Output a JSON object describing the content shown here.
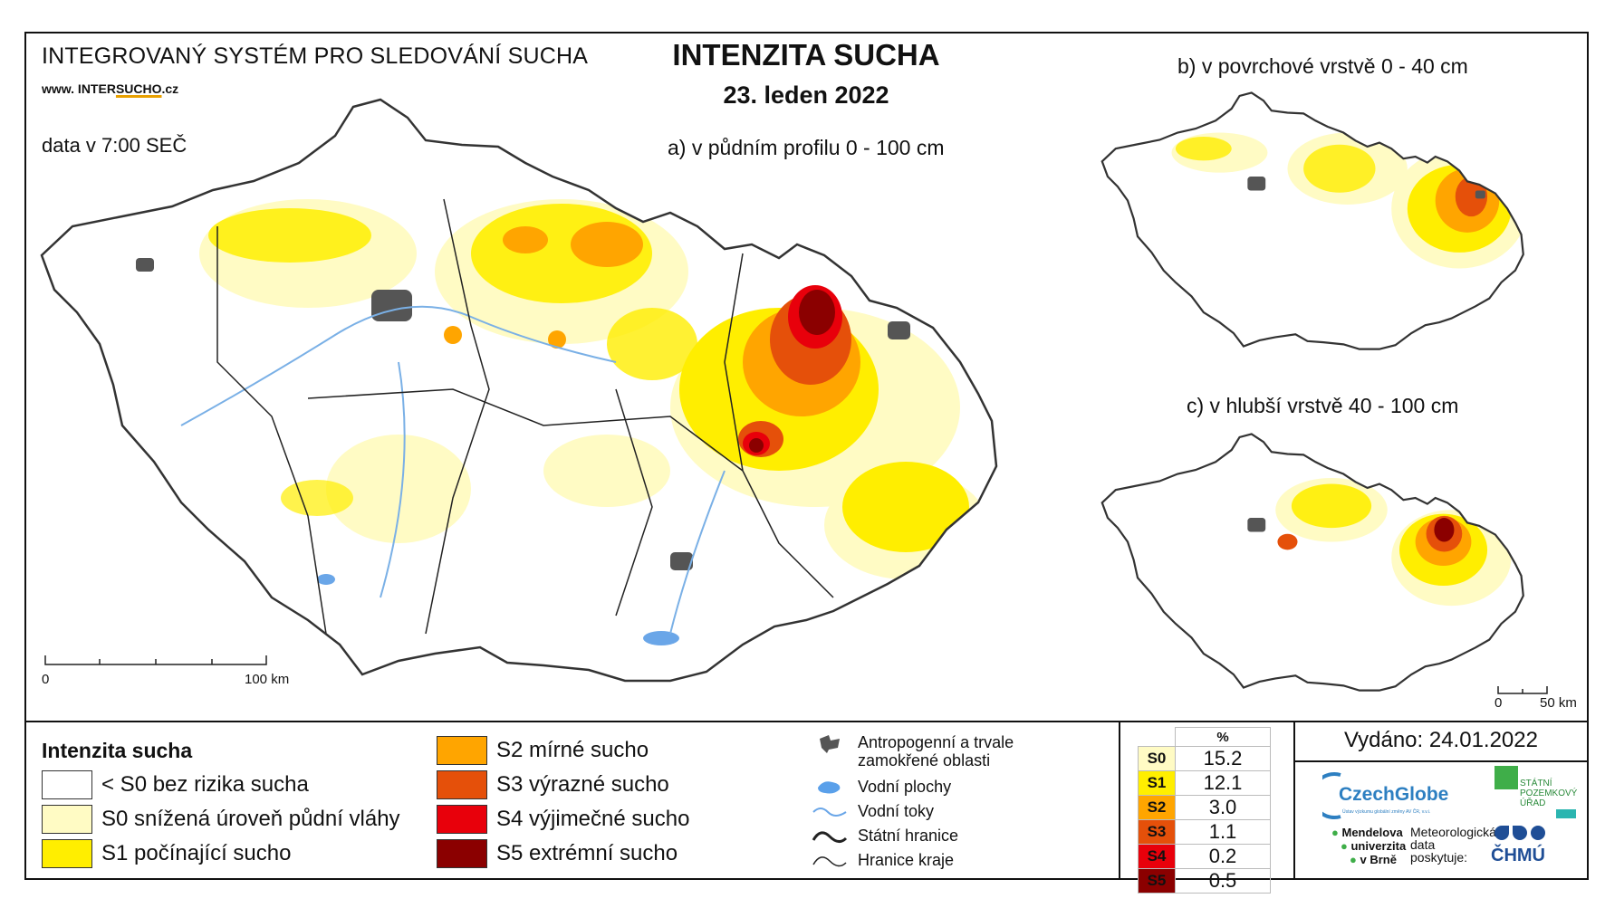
{
  "header": {
    "system": "INTEGROVANÝ SYSTÉM PRO SLEDOVÁNÍ SUCHA",
    "website_prefix": "www. INTER",
    "website_highlight": "SUCHO",
    "website_suffix": ".cz",
    "data_time": "data v 7:00 SEČ",
    "title": "INTENZITA SUCHA",
    "date": "23. leden 2022"
  },
  "maps": {
    "main_caption": "a) v půdním profilu 0 - 100 cm",
    "surface_caption": "b) v povrchové vrstvě 0 - 40 cm",
    "deep_caption": "c) v hlubší vrstvě 40 - 100 cm",
    "main_scale": {
      "start": "0",
      "end": "100 km"
    },
    "small_scale": {
      "start": "0",
      "end": "50 km"
    }
  },
  "legend": {
    "title": "Intenzita sucha",
    "classes": [
      {
        "label": "< S0 bez rizika sucha",
        "color": "#ffffff"
      },
      {
        "label": "S0 snížená úroveň půdní vláhy",
        "color": "#fffbc4"
      },
      {
        "label": "S1 počínající sucho",
        "color": "#ffee00"
      },
      {
        "label": "S2 mírné sucho",
        "color": "#ffa500"
      },
      {
        "label": "S3 výrazné sucho",
        "color": "#e5500a"
      },
      {
        "label": "S4 výjimečné sucho",
        "color": "#e8000b"
      },
      {
        "label": "S5 extrémní sucho",
        "color": "#8b0000"
      }
    ],
    "symbols": [
      {
        "icon": "anthropogenic-area-icon",
        "label": "Antropogenní a trvale zamokřené oblasti"
      },
      {
        "icon": "water-body-icon",
        "label": "Vodní plochy"
      },
      {
        "icon": "river-icon",
        "label": "Vodní toky"
      },
      {
        "icon": "state-border-icon",
        "label": "Státní hranice"
      },
      {
        "icon": "region-border-icon",
        "label": "Hranice kraje"
      }
    ]
  },
  "percentages": {
    "header": "%",
    "rows": [
      {
        "cls": "S0",
        "value": "15.2",
        "color": "#fffbc4"
      },
      {
        "cls": "S1",
        "value": "12.1",
        "color": "#ffee00"
      },
      {
        "cls": "S2",
        "value": "3.0",
        "color": "#ffa500"
      },
      {
        "cls": "S3",
        "value": "1.1",
        "color": "#e5500a"
      },
      {
        "cls": "S4",
        "value": "0.2",
        "color": "#e8000b"
      },
      {
        "cls": "S5",
        "value": "0.5",
        "color": "#8b0000"
      }
    ]
  },
  "issued": "Vydáno: 24.01.2022",
  "logos": {
    "czechglobe": "CzechGlobe",
    "czechglobe_sub": "Ústav výzkumu globální změny AV ČR, v.v.i.",
    "spu": [
      "STÁTNÍ",
      "POZEMKOVÝ",
      "ÚŘAD"
    ],
    "mendel": [
      "Mendelova",
      "univerzita",
      "v Brně"
    ],
    "met": [
      "Meteorologická",
      "data",
      "poskytuje:"
    ],
    "chmu": "ČHMÚ"
  }
}
